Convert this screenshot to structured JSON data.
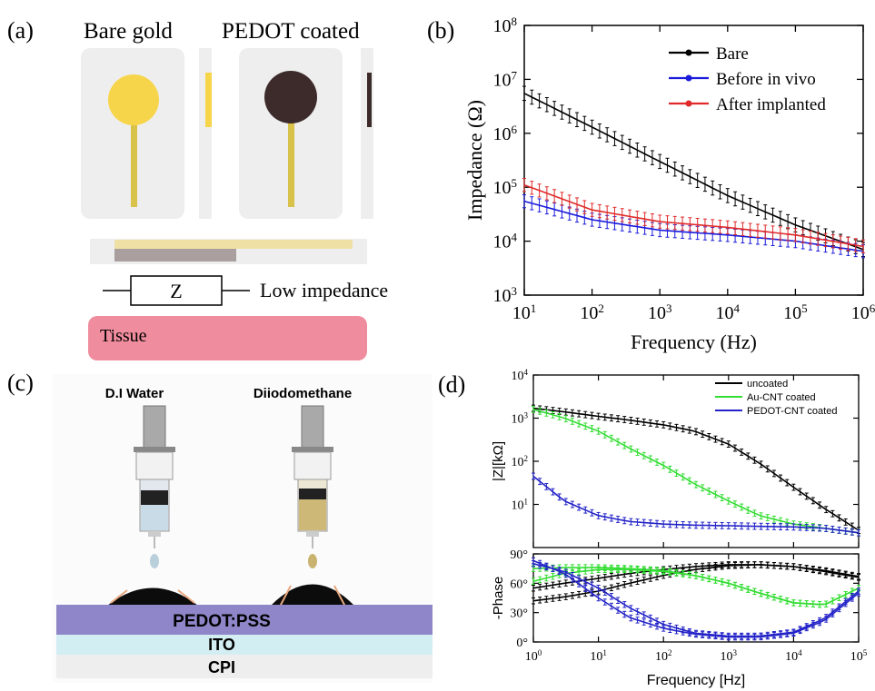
{
  "panels": {
    "a": {
      "label": "(a)",
      "bare_title": "Bare gold",
      "pedot_title": "PEDOT coated",
      "resistor_symbol": "Z",
      "resistor_caption": "Low impedance",
      "tissue_label": "Tissue",
      "colors": {
        "gold": "#f7d54a",
        "pedot": "#3d2b2b",
        "tissue": "#ef8c9d",
        "card": "#eeeeee"
      }
    },
    "b": {
      "label": "(b)"
    },
    "c": {
      "label": "(c)",
      "liquid_left": "D.I  Water",
      "liquid_right": "Diiodomethane",
      "layer_top": "PEDOT:PSS",
      "layer_mid": "ITO",
      "layer_bottom": "CPI",
      "colors": {
        "pedot_layer": "#8e86c8",
        "ito_layer": "#d3eef2",
        "cpi_layer": "#eeeeee"
      }
    },
    "d": {
      "label": "(d)"
    }
  },
  "chart_data": [
    {
      "id": "b",
      "type": "line",
      "xlabel": "Frequency (Hz)",
      "ylabel": "Impedance (Ω)",
      "x_scale": "log",
      "y_scale": "log",
      "xlim": [
        10,
        1000000
      ],
      "ylim": [
        1000,
        100000000
      ],
      "x_ticks": [
        {
          "v": 10,
          "b": "10",
          "e": "1"
        },
        {
          "v": 100,
          "b": "10",
          "e": "2"
        },
        {
          "v": 1000,
          "b": "10",
          "e": "3"
        },
        {
          "v": 10000,
          "b": "10",
          "e": "4"
        },
        {
          "v": 100000,
          "b": "10",
          "e": "5"
        },
        {
          "v": 1000000,
          "b": "10",
          "e": "6"
        }
      ],
      "y_ticks": [
        {
          "v": 1000,
          "b": "10",
          "e": "3"
        },
        {
          "v": 10000,
          "b": "10",
          "e": "4"
        },
        {
          "v": 100000,
          "b": "10",
          "e": "5"
        },
        {
          "v": 1000000,
          "b": "10",
          "e": "6"
        },
        {
          "v": 10000000,
          "b": "10",
          "e": "7"
        },
        {
          "v": 100000000,
          "b": "10",
          "e": "8"
        }
      ],
      "legend_position": "top-right",
      "series": [
        {
          "name": "Bare",
          "color": "#000000",
          "x": [
            10,
            100,
            1000,
            10000,
            100000,
            1000000
          ],
          "y": [
            5500000,
            1300000,
            300000,
            70000,
            20000,
            7000
          ]
        },
        {
          "name": "Before in vivo",
          "color": "#1a1adb",
          "x": [
            10,
            100,
            1000,
            10000,
            100000,
            1000000
          ],
          "y": [
            55000,
            25000,
            16000,
            13000,
            10000,
            6500
          ]
        },
        {
          "name": "After implanted",
          "color": "#e02a2a",
          "x": [
            10,
            100,
            1000,
            10000,
            100000,
            1000000
          ],
          "y": [
            110000,
            38000,
            23000,
            18000,
            13000,
            8000
          ]
        }
      ]
    },
    {
      "id": "d",
      "type": "line",
      "xlabel": "Frequency [Hz]",
      "x_scale": "log",
      "xlim": [
        1,
        100000
      ],
      "x_ticks": [
        {
          "v": 1,
          "b": "10",
          "e": "0"
        },
        {
          "v": 10,
          "b": "10",
          "e": "1"
        },
        {
          "v": 100,
          "b": "10",
          "e": "2"
        },
        {
          "v": 1000,
          "b": "10",
          "e": "3"
        },
        {
          "v": 10000,
          "b": "10",
          "e": "4"
        },
        {
          "v": 100000,
          "b": "10",
          "e": "5"
        }
      ],
      "legend_position": "top-right",
      "legend": [
        {
          "name": "uncoated",
          "color": "#000000"
        },
        {
          "name": "Au-CNT coated",
          "color": "#33dd33"
        },
        {
          "name": "PEDOT-CNT coated",
          "color": "#2323c8"
        }
      ],
      "top": {
        "ylabel": "|Z|[kΩ]",
        "y_scale": "log",
        "ylim": [
          1,
          10000
        ],
        "y_ticks": [
          {
            "v": 10,
            "b": "10",
            "e": "1"
          },
          {
            "v": 100,
            "b": "10",
            "e": "2"
          },
          {
            "v": 1000,
            "b": "10",
            "e": "3"
          },
          {
            "v": 10000,
            "b": "10",
            "e": "4"
          }
        ],
        "series": [
          {
            "name": "uncoated",
            "color": "#000000",
            "x": [
              1,
              3,
              10,
              30,
              100,
              300,
              1000,
              3000,
              10000,
              30000,
              100000
            ],
            "y": [
              1700,
              1400,
              1100,
              900,
              700,
              500,
              250,
              90,
              25,
              8,
              2.5
            ]
          },
          {
            "name": "Au-CNT coated",
            "color": "#33dd33",
            "x": [
              1,
              3,
              10,
              30,
              100,
              300,
              1000,
              3000,
              10000,
              30000,
              100000
            ],
            "y": [
              1600,
              1000,
              500,
              200,
              80,
              30,
              12,
              5.5,
              3.5,
              2.8,
              2.2
            ]
          },
          {
            "name": "PEDOT-CNT coated",
            "color": "#2323c8",
            "x": [
              1,
              3,
              10,
              30,
              100,
              300,
              1000,
              3000,
              10000,
              30000,
              100000
            ],
            "y": [
              45,
              12,
              5.5,
              4.0,
              3.5,
              3.3,
              3.2,
              3.1,
              3.0,
              2.8,
              2.2
            ]
          }
        ]
      },
      "bottom": {
        "ylabel": "-Phase",
        "ylim": [
          0,
          90
        ],
        "y_ticks": [
          {
            "v": 0,
            "b": "0°"
          },
          {
            "v": 30,
            "b": "30°"
          },
          {
            "v": 60,
            "b": "60°"
          },
          {
            "v": 90,
            "b": "90°"
          }
        ],
        "series": [
          {
            "name": "uncoated",
            "color": "#000000",
            "x": [
              1,
              3,
              10,
              30,
              100,
              300,
              1000,
              3000,
              10000,
              30000,
              100000
            ],
            "y": [
              42,
              46,
              52,
              60,
              68,
              74,
              78,
              79,
              77,
              72,
              66
            ]
          },
          {
            "name": "uncoated",
            "color": "#000000",
            "x": [
              1,
              3,
              10,
              30,
              100,
              300,
              1000,
              3000,
              10000,
              30000,
              100000
            ],
            "y": [
              55,
              60,
              65,
              70,
              74,
              77,
              79,
              79,
              77,
              73,
              67
            ]
          },
          {
            "name": "Au-CNT coated",
            "color": "#33dd33",
            "x": [
              1,
              3,
              10,
              30,
              100,
              300,
              1000,
              3000,
              10000,
              30000,
              100000
            ],
            "y": [
              62,
              70,
              74,
              74,
              72,
              68,
              60,
              50,
              40,
              38,
              55
            ]
          },
          {
            "name": "Au-CNT coated",
            "color": "#33dd33",
            "x": [
              1,
              3,
              10,
              30,
              100,
              300,
              1000,
              3000,
              10000,
              30000,
              100000
            ],
            "y": [
              75,
              76,
              76,
              75,
              73,
              68,
              60,
              50,
              40,
              38,
              55
            ]
          },
          {
            "name": "PEDOT-CNT coated",
            "color": "#2323c8",
            "x": [
              1,
              3,
              10,
              30,
              100,
              300,
              1000,
              3000,
              10000,
              30000,
              100000
            ],
            "y": [
              83,
              70,
              45,
              25,
              14,
              8,
              5,
              5,
              9,
              22,
              50
            ]
          },
          {
            "name": "PEDOT-CNT coated",
            "color": "#2323c8",
            "x": [
              1,
              3,
              10,
              30,
              100,
              300,
              1000,
              3000,
              10000,
              30000,
              100000
            ],
            "y": [
              80,
              72,
              55,
              35,
              18,
              9,
              6,
              6,
              10,
              24,
              52
            ]
          }
        ]
      }
    }
  ]
}
